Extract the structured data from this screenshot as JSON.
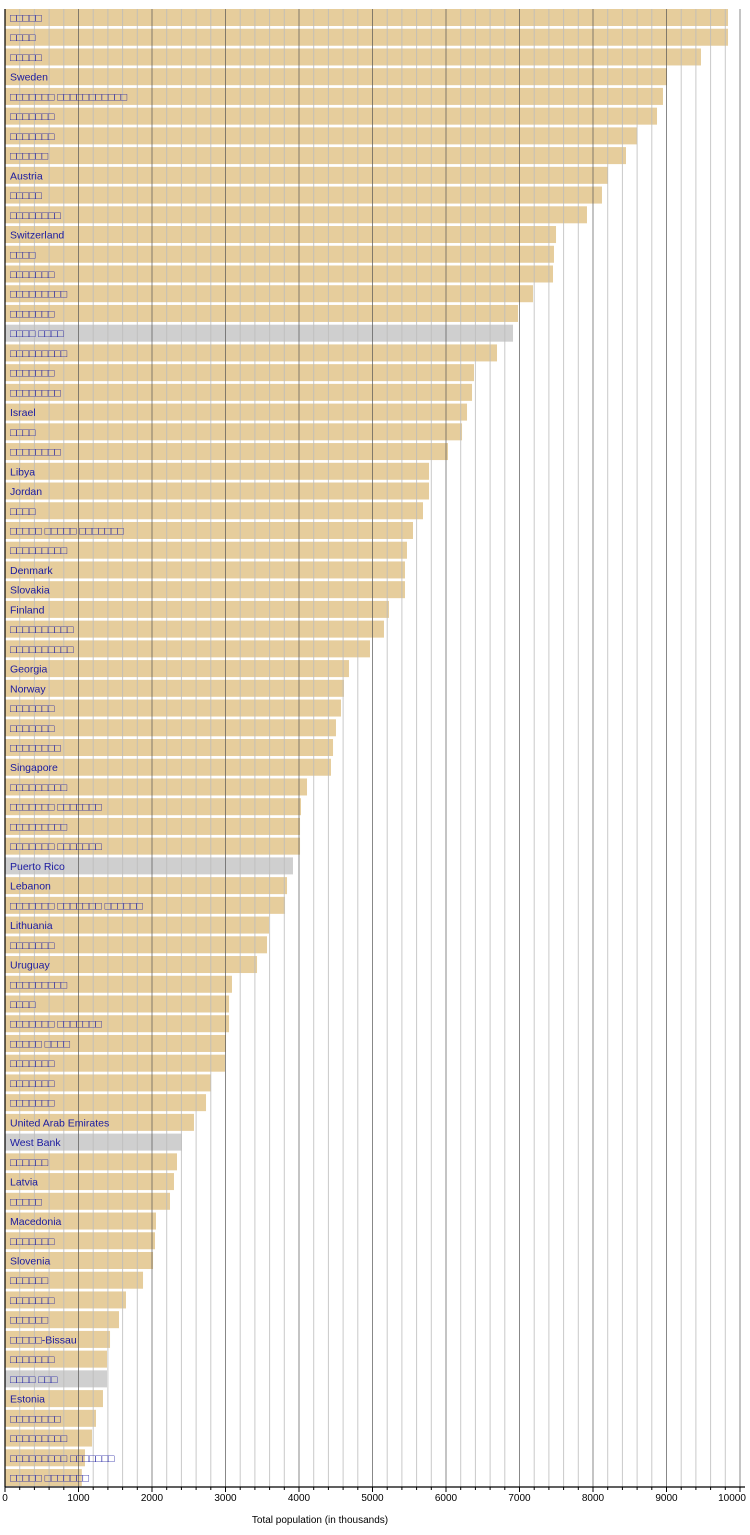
{
  "chart_data": {
    "type": "bar",
    "orientation": "horizontal",
    "xlabel": "Total population (in thousands)",
    "xlim": [
      0,
      10000
    ],
    "xticks": [
      0,
      1000,
      2000,
      3000,
      4000,
      5000,
      6000,
      7000,
      8000,
      9000,
      10000
    ],
    "grid": "vertical, major every 1000, minor every 200",
    "colors": {
      "bar": "#e6cd9c",
      "highlight": "#cfcfcf",
      "label": "#1a1aa0"
    },
    "categories": [
      "□□□□□",
      "□□□□",
      "□□□□□",
      "Sweden",
      "□□□□□□□ □□□□□□□□□□□",
      "□□□□□□□",
      "□□□□□□□",
      "□□□□□□",
      "Austria",
      "□□□□□",
      "□□□□□□□□",
      "Switzerland",
      "□□□□",
      "□□□□□□□",
      "□□□□□□□□□",
      "□□□□□□□",
      "□□□□ □□□□",
      "□□□□□□□□□",
      "□□□□□□□",
      "□□□□□□□□",
      "Israel",
      "□□□□",
      "□□□□□□□□",
      "Libya",
      "Jordan",
      "□□□□",
      "□□□□□ □□□□□ □□□□□□□",
      "□□□□□□□□□",
      "Denmark",
      "Slovakia",
      "Finland",
      "□□□□□□□□□□",
      "□□□□□□□□□□",
      "Georgia",
      "Norway",
      "□□□□□□□",
      "□□□□□□□",
      "□□□□□□□□",
      "Singapore",
      "□□□□□□□□□",
      "□□□□□□□ □□□□□□□",
      "□□□□□□□□□",
      "□□□□□□□ □□□□□□□",
      "Puerto Rico",
      "Lebanon",
      "□□□□□□□ □□□□□□□ □□□□□□",
      "Lithuania",
      "□□□□□□□",
      "Uruguay",
      "□□□□□□□□□",
      "□□□□",
      "□□□□□□□ □□□□□□□",
      "□□□□□ □□□□",
      "□□□□□□□",
      "□□□□□□□",
      "□□□□□□□",
      "United Arab Emirates",
      "West Bank",
      "□□□□□□",
      "Latvia",
      "□□□□□",
      "Macedonia",
      "□□□□□□□",
      "Slovenia",
      "□□□□□□",
      "□□□□□□□",
      "□□□□□□",
      "□□□□□-Bissau",
      "□□□□□□□",
      "□□□□ □□□",
      "Estonia",
      "□□□□□□□□",
      "□□□□□□□□□",
      "□□□□□□□□□ □□□□□□□",
      "□□□□□ □□□□□□□"
    ],
    "values": [
      9837,
      9837,
      9469,
      9007,
      8952,
      8871,
      8599,
      8449,
      8204,
      8122,
      7918,
      7497,
      7469,
      7456,
      7184,
      6980,
      6912,
      6694,
      6381,
      6354,
      6286,
      6218,
      6027,
      5769,
      5769,
      5687,
      5551,
      5469,
      5442,
      5442,
      5224,
      5156,
      4966,
      4680,
      4612,
      4571,
      4503,
      4463,
      4435,
      4109,
      4027,
      4014,
      4014,
      3918,
      3837,
      3810,
      3592,
      3565,
      3429,
      3088,
      3048,
      3048,
      3007,
      2993,
      2803,
      2735,
      2571,
      2408,
      2340,
      2299,
      2245,
      2054,
      2041,
      2014,
      1878,
      1646,
      1551,
      1429,
      1388,
      1388,
      1333,
      1238,
      1184,
      1088,
      1045
    ],
    "highlighted": [
      16,
      43,
      57,
      69
    ]
  }
}
